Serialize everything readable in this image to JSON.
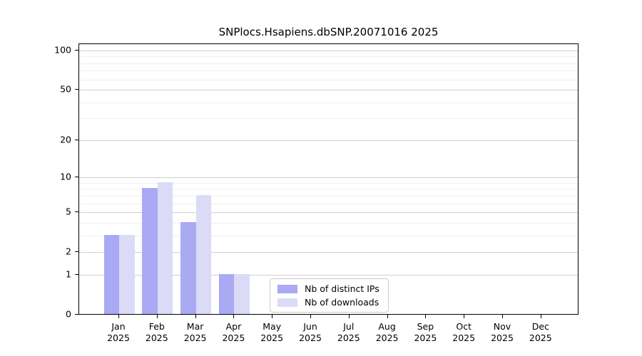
{
  "chart_data": {
    "type": "bar",
    "title": "SNPlocs.Hsapiens.dbSNP.20071016 2025",
    "categories": [
      "Jan 2025",
      "Feb 2025",
      "Mar 2025",
      "Apr 2025",
      "May 2025",
      "Jun 2025",
      "Jul 2025",
      "Aug 2025",
      "Sep 2025",
      "Oct 2025",
      "Nov 2025",
      "Dec 2025"
    ],
    "series": [
      {
        "name": "Nb of distinct IPs",
        "color": "#a9a9f4",
        "values": [
          3,
          8,
          4,
          1,
          0,
          0,
          0,
          0,
          0,
          0,
          0,
          0
        ]
      },
      {
        "name": "Nb of downloads",
        "color": "#dbdbf8",
        "values": [
          3,
          9,
          7,
          1,
          0,
          0,
          0,
          0,
          0,
          0,
          0,
          0
        ]
      }
    ],
    "xlabel": "",
    "ylabel": "",
    "yscale": "log1p",
    "ylim": [
      0,
      112
    ],
    "yticks": [
      0,
      1,
      2,
      5,
      10,
      20,
      50,
      100
    ],
    "yticks_minor": [
      3,
      4,
      6,
      7,
      8,
      9,
      30,
      40,
      60,
      70,
      80,
      90
    ],
    "grid": true,
    "legend_position": "inside-bottom-center",
    "grid_major_color": "#cfcfcf",
    "grid_minor_color": "#efefef",
    "axis_color": "#000000"
  }
}
